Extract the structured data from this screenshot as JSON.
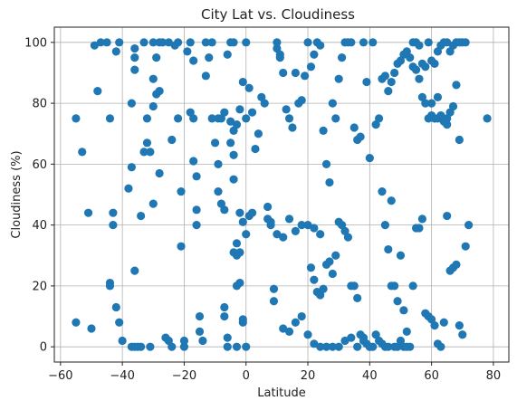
{
  "chart_data": {
    "type": "scatter",
    "title": "City Lat vs. Cloudiness",
    "xlabel": "Latitude",
    "ylabel": "Cloudiness (%)",
    "xlim": [
      -62,
      85
    ],
    "ylim": [
      -5,
      105
    ],
    "grid": true,
    "marker_color": "#1f77b4",
    "xticks": [
      {
        "value": -60,
        "label": "−60"
      },
      {
        "value": -40,
        "label": "−40"
      },
      {
        "value": -20,
        "label": "−20"
      },
      {
        "value": 0,
        "label": "0"
      },
      {
        "value": 20,
        "label": "20"
      },
      {
        "value": 40,
        "label": "40"
      },
      {
        "value": 60,
        "label": "60"
      },
      {
        "value": 80,
        "label": "80"
      }
    ],
    "yticks": [
      {
        "value": 0,
        "label": "0"
      },
      {
        "value": 20,
        "label": "20"
      },
      {
        "value": 40,
        "label": "40"
      },
      {
        "value": 60,
        "label": "60"
      },
      {
        "value": 80,
        "label": "80"
      },
      {
        "value": 100,
        "label": "100"
      }
    ],
    "points": [
      [
        -55,
        75
      ],
      [
        -53,
        64
      ],
      [
        -51,
        44
      ],
      [
        -55,
        8
      ],
      [
        -50,
        6
      ],
      [
        -49,
        99
      ],
      [
        -48,
        84
      ],
      [
        -47,
        100
      ],
      [
        -45,
        100
      ],
      [
        -44,
        75
      ],
      [
        -44,
        21
      ],
      [
        -44,
        20
      ],
      [
        -43,
        44
      ],
      [
        -43,
        40
      ],
      [
        -42,
        13
      ],
      [
        -42,
        97
      ],
      [
        -41,
        100
      ],
      [
        -41,
        8
      ],
      [
        -40,
        2
      ],
      [
        -38,
        52
      ],
      [
        -37,
        80
      ],
      [
        -36,
        98
      ],
      [
        -36,
        95
      ],
      [
        -36,
        91
      ],
      [
        -37,
        59
      ],
      [
        -36,
        25
      ],
      [
        -37,
        0
      ],
      [
        -36,
        0
      ],
      [
        -35,
        0
      ],
      [
        -34,
        0
      ],
      [
        -34,
        43
      ],
      [
        -33,
        64
      ],
      [
        -33,
        100
      ],
      [
        -32,
        75
      ],
      [
        -32,
        67
      ],
      [
        -31,
        64
      ],
      [
        -31,
        0
      ],
      [
        -30,
        47
      ],
      [
        -30,
        88
      ],
      [
        -30,
        79
      ],
      [
        -30,
        100
      ],
      [
        -29,
        83
      ],
      [
        -28,
        84
      ],
      [
        -28,
        57
      ],
      [
        -29,
        95
      ],
      [
        -28,
        100
      ],
      [
        -27,
        100
      ],
      [
        -26,
        3
      ],
      [
        -25,
        2
      ],
      [
        -24,
        0
      ],
      [
        -25,
        100
      ],
      [
        -24,
        68
      ],
      [
        -23,
        99
      ],
      [
        -22,
        100
      ],
      [
        -22,
        75
      ],
      [
        -21,
        33
      ],
      [
        -21,
        51
      ],
      [
        -20,
        0
      ],
      [
        -20,
        2
      ],
      [
        -19,
        97
      ],
      [
        -18,
        100
      ],
      [
        -18,
        77
      ],
      [
        -17,
        94
      ],
      [
        -17,
        75
      ],
      [
        -17,
        61
      ],
      [
        -16,
        56
      ],
      [
        -16,
        45
      ],
      [
        -16,
        40
      ],
      [
        -15,
        10
      ],
      [
        -15,
        5
      ],
      [
        -14,
        2
      ],
      [
        -13,
        100
      ],
      [
        -13,
        89
      ],
      [
        -12,
        95
      ],
      [
        -11,
        100
      ],
      [
        -11,
        75
      ],
      [
        -10,
        67
      ],
      [
        -9,
        60
      ],
      [
        -9,
        51
      ],
      [
        -8,
        47
      ],
      [
        -7,
        45
      ],
      [
        -7,
        13
      ],
      [
        -7,
        10
      ],
      [
        -6,
        3
      ],
      [
        -6,
        96
      ],
      [
        -5,
        100
      ],
      [
        -4,
        100
      ],
      [
        -4,
        63
      ],
      [
        -4,
        55
      ],
      [
        -4,
        31
      ],
      [
        -3,
        20
      ],
      [
        -3,
        30
      ],
      [
        -2,
        21
      ],
      [
        -2,
        31
      ],
      [
        -1,
        8
      ],
      [
        -1,
        9
      ],
      [
        0,
        100
      ],
      [
        0,
        0
      ],
      [
        -3,
        0
      ],
      [
        -6,
        0
      ],
      [
        -3,
        34
      ],
      [
        -2,
        44
      ],
      [
        -1,
        41
      ],
      [
        0,
        37
      ],
      [
        1,
        43
      ],
      [
        2,
        44
      ],
      [
        -8,
        75
      ],
      [
        -9,
        75
      ],
      [
        -7,
        77
      ],
      [
        -5,
        74
      ],
      [
        -5,
        67
      ],
      [
        -4,
        71
      ],
      [
        -3,
        73
      ],
      [
        -2,
        78
      ],
      [
        -1,
        87
      ],
      [
        0,
        75
      ],
      [
        1,
        85
      ],
      [
        2,
        77
      ],
      [
        3,
        65
      ],
      [
        4,
        70
      ],
      [
        5,
        82
      ],
      [
        6,
        80
      ],
      [
        7,
        46
      ],
      [
        7,
        42
      ],
      [
        8,
        40
      ],
      [
        9,
        19
      ],
      [
        9,
        15
      ],
      [
        10,
        100
      ],
      [
        10,
        98
      ],
      [
        11,
        96
      ],
      [
        11,
        95
      ],
      [
        12,
        90
      ],
      [
        13,
        78
      ],
      [
        14,
        75
      ],
      [
        15,
        72
      ],
      [
        16,
        90
      ],
      [
        17,
        80
      ],
      [
        18,
        81
      ],
      [
        19,
        89
      ],
      [
        20,
        100
      ],
      [
        21,
        92
      ],
      [
        22,
        96
      ],
      [
        23,
        100
      ],
      [
        24,
        99
      ],
      [
        25,
        71
      ],
      [
        26,
        60
      ],
      [
        27,
        54
      ],
      [
        28,
        80
      ],
      [
        29,
        75
      ],
      [
        30,
        88
      ],
      [
        31,
        95
      ],
      [
        32,
        100
      ],
      [
        33,
        100
      ],
      [
        34,
        100
      ],
      [
        35,
        72
      ],
      [
        36,
        68
      ],
      [
        37,
        69
      ],
      [
        38,
        100
      ],
      [
        39,
        87
      ],
      [
        40,
        62
      ],
      [
        41,
        100
      ],
      [
        42,
        73
      ],
      [
        43,
        75
      ],
      [
        44,
        51
      ],
      [
        45,
        40
      ],
      [
        46,
        32
      ],
      [
        47,
        48
      ],
      [
        48,
        20
      ],
      [
        49,
        15
      ],
      [
        50,
        30
      ],
      [
        51,
        12
      ],
      [
        52,
        5
      ],
      [
        53,
        0
      ],
      [
        54,
        20
      ],
      [
        55,
        39
      ],
      [
        56,
        39
      ],
      [
        57,
        42
      ],
      [
        58,
        11
      ],
      [
        59,
        10
      ],
      [
        60,
        9
      ],
      [
        61,
        7
      ],
      [
        62,
        1
      ],
      [
        63,
        0
      ],
      [
        64,
        8
      ],
      [
        65,
        43
      ],
      [
        66,
        25
      ],
      [
        67,
        26
      ],
      [
        68,
        27
      ],
      [
        69,
        7
      ],
      [
        70,
        4
      ],
      [
        71,
        33
      ],
      [
        72,
        40
      ],
      [
        78,
        75
      ],
      [
        21,
        26
      ],
      [
        22,
        22
      ],
      [
        23,
        18
      ],
      [
        24,
        17
      ],
      [
        25,
        19
      ],
      [
        26,
        27
      ],
      [
        27,
        28
      ],
      [
        28,
        24
      ],
      [
        29,
        30
      ],
      [
        30,
        41
      ],
      [
        31,
        40
      ],
      [
        32,
        38
      ],
      [
        33,
        36
      ],
      [
        34,
        20
      ],
      [
        35,
        20
      ],
      [
        36,
        16
      ],
      [
        37,
        4
      ],
      [
        38,
        3
      ],
      [
        39,
        1
      ],
      [
        40,
        0
      ],
      [
        41,
        0
      ],
      [
        42,
        4
      ],
      [
        43,
        2
      ],
      [
        44,
        1
      ],
      [
        45,
        0
      ],
      [
        46,
        0
      ],
      [
        47,
        20
      ],
      [
        48,
        0
      ],
      [
        49,
        0
      ],
      [
        50,
        2
      ],
      [
        51,
        0
      ],
      [
        52,
        0
      ],
      [
        8,
        41
      ],
      [
        10,
        37
      ],
      [
        12,
        36
      ],
      [
        14,
        42
      ],
      [
        16,
        38
      ],
      [
        18,
        40
      ],
      [
        20,
        40
      ],
      [
        22,
        39
      ],
      [
        24,
        37
      ],
      [
        12,
        6
      ],
      [
        14,
        5
      ],
      [
        16,
        8
      ],
      [
        18,
        10
      ],
      [
        20,
        4
      ],
      [
        22,
        1
      ],
      [
        24,
        0
      ],
      [
        26,
        0
      ],
      [
        28,
        0
      ],
      [
        30,
        0
      ],
      [
        32,
        2
      ],
      [
        34,
        3
      ],
      [
        36,
        0
      ],
      [
        38,
        2
      ],
      [
        40,
        0
      ],
      [
        54,
        100
      ],
      [
        55,
        100
      ],
      [
        56,
        99
      ],
      [
        57,
        93
      ],
      [
        58,
        92
      ],
      [
        59,
        100
      ],
      [
        60,
        94
      ],
      [
        61,
        93
      ],
      [
        62,
        97
      ],
      [
        63,
        99
      ],
      [
        64,
        100
      ],
      [
        65,
        100
      ],
      [
        66,
        97
      ],
      [
        67,
        99
      ],
      [
        68,
        100
      ],
      [
        69,
        100
      ],
      [
        70,
        100
      ],
      [
        71,
        100
      ],
      [
        60,
        80
      ],
      [
        61,
        75
      ],
      [
        62,
        82
      ],
      [
        63,
        75
      ],
      [
        64,
        74
      ],
      [
        65,
        75
      ],
      [
        66,
        77
      ],
      [
        67,
        79
      ],
      [
        68,
        86
      ],
      [
        69,
        68
      ],
      [
        44,
        88
      ],
      [
        45,
        89
      ],
      [
        46,
        84
      ],
      [
        47,
        87
      ],
      [
        48,
        90
      ],
      [
        49,
        93
      ],
      [
        50,
        94
      ],
      [
        51,
        96
      ],
      [
        52,
        97
      ],
      [
        53,
        95
      ],
      [
        54,
        92
      ],
      [
        55,
        91
      ],
      [
        56,
        88
      ],
      [
        57,
        82
      ],
      [
        58,
        80
      ],
      [
        59,
        75
      ],
      [
        60,
        76
      ],
      [
        61,
        75
      ],
      [
        62,
        75
      ],
      [
        63,
        76
      ],
      [
        64,
        75
      ],
      [
        65,
        73
      ]
    ]
  }
}
